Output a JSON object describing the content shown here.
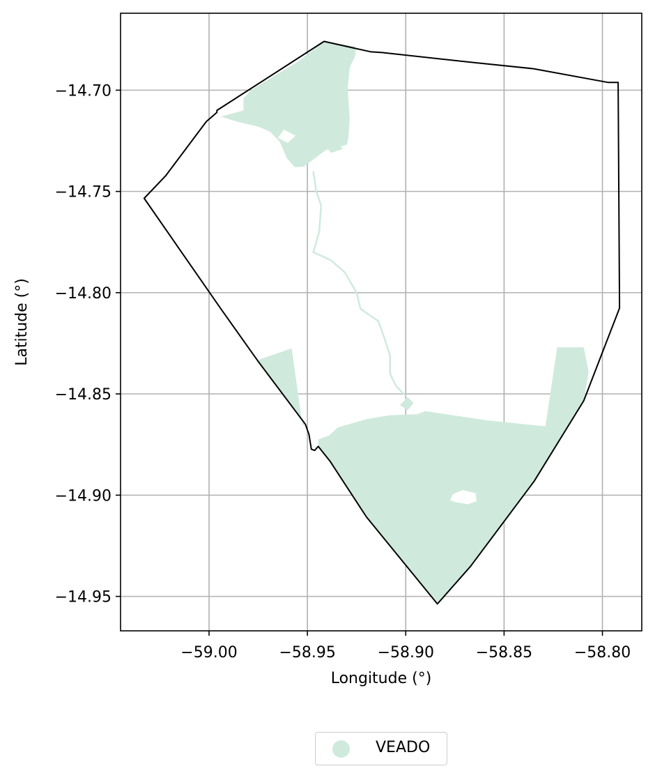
{
  "chart_data": {
    "type": "map",
    "xlabel": "Longitude (°)",
    "ylabel": "Latitude (°)",
    "xlim": [
      -59.045,
      -58.78
    ],
    "ylim": [
      -14.967,
      -14.662
    ],
    "grid": true,
    "x_ticks": [
      -59.0,
      -58.95,
      -58.9,
      -58.85,
      -58.8
    ],
    "x_tick_labels": [
      "−59.00",
      "−58.95",
      "−58.90",
      "−58.85",
      "−58.80"
    ],
    "y_ticks": [
      -14.7,
      -14.75,
      -14.8,
      -14.85,
      -14.9,
      -14.95
    ],
    "y_tick_labels": [
      "−14.70",
      "−14.75",
      "−14.80",
      "−14.85",
      "−14.90",
      "−14.95"
    ],
    "boundary": {
      "stroke_color": "#000000",
      "coordinates": [
        [
          -58.9415,
          -14.6759
        ],
        [
          -58.918,
          -14.681
        ],
        [
          -58.912,
          -14.6814
        ],
        [
          -58.867,
          -14.6862
        ],
        [
          -58.835,
          -14.6894
        ],
        [
          -58.797,
          -14.6962
        ],
        [
          -58.7938,
          -14.6962
        ],
        [
          -58.792,
          -14.6962
        ],
        [
          -58.7913,
          -14.8076
        ],
        [
          -58.8095,
          -14.8534
        ],
        [
          -58.8347,
          -14.8931
        ],
        [
          -58.867,
          -14.9351
        ],
        [
          -58.8839,
          -14.9537
        ],
        [
          -58.92,
          -14.9107
        ],
        [
          -58.9385,
          -14.8832
        ],
        [
          -58.9445,
          -14.8759
        ],
        [
          -58.9463,
          -14.8779
        ],
        [
          -58.948,
          -14.8773
        ],
        [
          -58.9492,
          -14.87
        ],
        [
          -58.951,
          -14.865
        ],
        [
          -58.975,
          -14.834
        ],
        [
          -58.994,
          -14.808
        ],
        [
          -59.033,
          -14.7534
        ],
        [
          -59.022,
          -14.7422
        ],
        [
          -59.0014,
          -14.7155
        ],
        [
          -58.996,
          -14.711
        ],
        [
          -58.996,
          -14.71
        ],
        [
          -58.9415,
          -14.6759
        ]
      ]
    },
    "series": [
      {
        "name": "VEADO",
        "color": "#cfeadd",
        "polygons": [
          [
            [
              -58.9415,
              -14.6759
            ],
            [
              -58.9255,
              -14.6785
            ],
            [
              -58.9255,
              -14.6825
            ],
            [
              -58.9285,
              -14.689
            ],
            [
              -58.9295,
              -14.699
            ],
            [
              -58.9285,
              -14.714
            ],
            [
              -58.9292,
              -14.724
            ],
            [
              -58.93,
              -14.727
            ],
            [
              -58.9405,
              -14.7295
            ],
            [
              -58.952,
              -14.7378
            ],
            [
              -58.9565,
              -14.738
            ],
            [
              -58.9605,
              -14.7335
            ],
            [
              -58.964,
              -14.7255
            ],
            [
              -58.969,
              -14.7205
            ],
            [
              -58.975,
              -14.718
            ],
            [
              -58.986,
              -14.7155
            ],
            [
              -58.994,
              -14.713
            ],
            [
              -58.9825,
              -14.71
            ],
            [
              -58.9825,
              -14.704
            ],
            [
              -58.978,
              -14.6995
            ],
            [
              -58.955,
              -14.686
            ],
            [
              -58.9415,
              -14.6759
            ]
          ],
          [
            [
              -58.976,
              -14.8335
            ],
            [
              -58.958,
              -14.8275
            ],
            [
              -58.9525,
              -14.8655
            ],
            [
              -58.951,
              -14.865
            ],
            [
              -58.975,
              -14.834
            ],
            [
              -58.976,
              -14.8335
            ]
          ],
          [
            [
              -58.9445,
              -14.8725
            ],
            [
              -58.939,
              -14.8705
            ],
            [
              -58.9345,
              -14.8665
            ],
            [
              -58.92,
              -14.8625
            ],
            [
              -58.908,
              -14.8605
            ],
            [
              -58.894,
              -14.86
            ],
            [
              -58.89,
              -14.8585
            ],
            [
              -58.859,
              -14.863
            ],
            [
              -58.829,
              -14.866
            ],
            [
              -58.823,
              -14.827
            ],
            [
              -58.8095,
              -14.827
            ],
            [
              -58.807,
              -14.839
            ],
            [
              -58.8095,
              -14.8534
            ],
            [
              -58.8347,
              -14.8931
            ],
            [
              -58.867,
              -14.9351
            ],
            [
              -58.8839,
              -14.9537
            ],
            [
              -58.92,
              -14.9107
            ],
            [
              -58.9385,
              -14.8832
            ],
            [
              -58.9445,
              -14.8759
            ],
            [
              -58.9445,
              -14.8725
            ]
          ],
          [
            [
              -58.899,
              -14.858
            ],
            [
              -58.896,
              -14.8545
            ],
            [
              -58.899,
              -14.8515
            ],
            [
              -58.903,
              -14.8555
            ],
            [
              -58.899,
              -14.858
            ]
          ],
          [
            [
              -58.9335,
              -14.727
            ],
            [
              -58.9395,
              -14.729
            ],
            [
              -58.938,
              -14.731
            ],
            [
              -58.932,
              -14.729
            ],
            [
              -58.9335,
              -14.727
            ]
          ]
        ],
        "holes": [
          [
            [
              -58.876,
              -14.8995
            ],
            [
              -58.871,
              -14.8975
            ],
            [
              -58.8645,
              -14.899
            ],
            [
              -58.864,
              -14.903
            ],
            [
              -58.8685,
              -14.9045
            ],
            [
              -58.8745,
              -14.9035
            ],
            [
              -58.8775,
              -14.9025
            ],
            [
              -58.876,
              -14.8995
            ]
          ],
          [
            [
              -58.956,
              -14.7225
            ],
            [
              -58.962,
              -14.7195
            ],
            [
              -58.965,
              -14.7235
            ],
            [
              -58.96,
              -14.726
            ],
            [
              -58.956,
              -14.7225
            ]
          ]
        ],
        "lines": [
          [
            [
              -58.947,
              -14.74
            ],
            [
              -58.9455,
              -14.75
            ],
            [
              -58.943,
              -14.757
            ],
            [
              -58.944,
              -14.77
            ],
            [
              -58.947,
              -14.78
            ],
            [
              -58.938,
              -14.784
            ],
            [
              -58.931,
              -14.79
            ],
            [
              -58.925,
              -14.8
            ],
            [
              -58.923,
              -14.808
            ],
            [
              -58.914,
              -14.814
            ],
            [
              -58.911,
              -14.822
            ],
            [
              -58.908,
              -14.831
            ],
            [
              -58.908,
              -14.84
            ],
            [
              -58.905,
              -14.846
            ],
            [
              -58.9,
              -14.851
            ]
          ]
        ]
      }
    ],
    "legend": {
      "placement": "bottom-center-outside",
      "entries": [
        {
          "label": "VEADO",
          "color": "#cfeadd",
          "marker": "circle"
        }
      ]
    }
  }
}
